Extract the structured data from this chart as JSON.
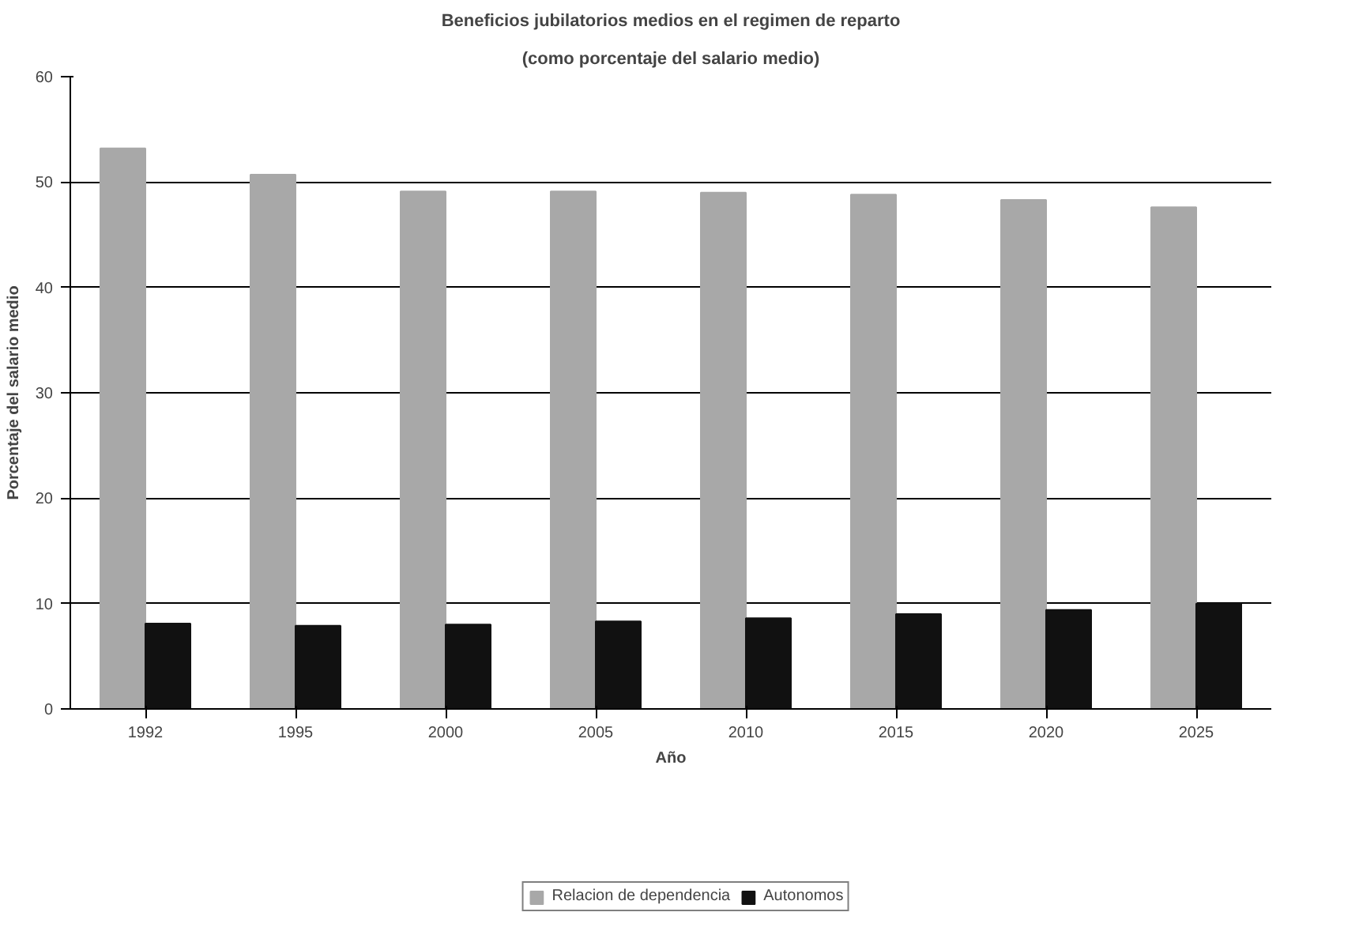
{
  "chart_data": {
    "type": "bar",
    "title": "Beneficios jubilatorios medios en el regimen de reparto",
    "subtitle": "(como porcentaje del salario medio)",
    "xlabel": "Año",
    "ylabel": "Porcentaje del salario medio",
    "categories": [
      "1992",
      "1995",
      "2000",
      "2005",
      "2010",
      "2015",
      "2020",
      "2025"
    ],
    "series": [
      {
        "name": "Relacion de dependencia",
        "color": "#a8a8a8",
        "values": [
          53.2,
          50.7,
          49.1,
          49.1,
          49.0,
          48.8,
          48.3,
          47.6
        ]
      },
      {
        "name": "Autonomos",
        "color": "#111111",
        "values": [
          8.1,
          7.9,
          8.0,
          8.3,
          8.6,
          9.0,
          9.4,
          10.0
        ]
      }
    ],
    "ylim": [
      0,
      60
    ],
    "yticks": [
      0,
      10,
      20,
      30,
      40,
      50,
      60
    ],
    "grid": "y",
    "legend": "bottom"
  }
}
